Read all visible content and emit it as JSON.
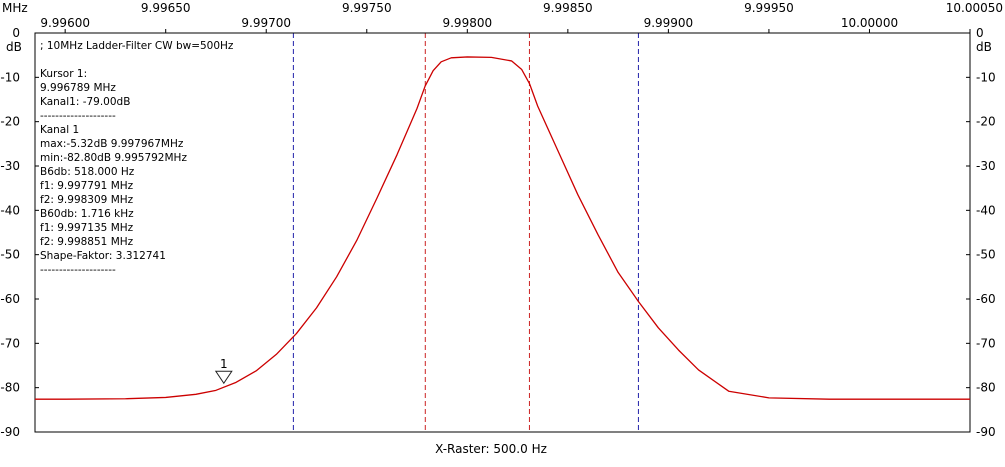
{
  "chart_data": {
    "type": "line",
    "title": "; 10MHz Ladder-Filter CW bw=500Hz",
    "x_unit": "MHz",
    "y_unit_left": "dB",
    "y_unit_right": "dB",
    "xlabel": "X-Raster: 500.0 Hz",
    "xlim": [
      9.99585,
      10.0005
    ],
    "ylim": [
      -90,
      0
    ],
    "x_ticks": [
      "9.99600",
      "9.99650",
      "9.99700",
      "9.99750",
      "9.99800",
      "9.99850",
      "9.99900",
      "9.99950",
      "10.00000",
      "10.00050"
    ],
    "y_ticks": [
      "0",
      "-10",
      "-20",
      "-30",
      "-40",
      "-50",
      "-60",
      "-70",
      "-80",
      "-90"
    ],
    "grid": true,
    "series": [
      {
        "color": "#cc0000",
        "x": [
          9.99585,
          9.996,
          9.9963,
          9.9965,
          9.99665,
          9.99675,
          9.99685,
          9.99695,
          9.99705,
          9.99715,
          9.99725,
          9.99735,
          9.99745,
          9.99755,
          9.99765,
          9.99775,
          9.99779,
          9.99783,
          9.99787,
          9.99792,
          9.998,
          9.99812,
          9.99822,
          9.99827,
          9.99831,
          9.99835,
          9.99845,
          9.99855,
          9.99865,
          9.99875,
          9.99885,
          9.99895,
          9.99905,
          9.99915,
          9.9993,
          9.9995,
          9.9998,
          10.0001,
          10.0005
        ],
        "values": [
          -82.6,
          -82.6,
          -82.5,
          -82.2,
          -81.5,
          -80.6,
          -78.8,
          -76.2,
          -72.5,
          -67.8,
          -62.0,
          -55.0,
          -46.8,
          -37.3,
          -27.5,
          -17.0,
          -12.0,
          -8.5,
          -6.5,
          -5.6,
          -5.4,
          -5.5,
          -6.3,
          -8.2,
          -11.5,
          -16.5,
          -26.5,
          -36.5,
          -45.5,
          -54.0,
          -60.5,
          -66.5,
          -71.5,
          -76.0,
          -80.8,
          -82.3,
          -82.6,
          -82.6,
          -82.6
        ]
      }
    ],
    "vlines": [
      {
        "x": 9.997135,
        "color": "#2222aa"
      },
      {
        "x": 9.997791,
        "color": "#cc2222"
      },
      {
        "x": 9.998309,
        "color": "#cc2222"
      },
      {
        "x": 9.998851,
        "color": "#2222aa"
      }
    ],
    "marker": {
      "x": 9.996789,
      "y": -79.0,
      "label": "1",
      "color": "#993333"
    },
    "info_lines": [
      "; 10MHz Ladder-Filter CW bw=500Hz",
      "",
      "Kursor 1:",
      "9.996789 MHz",
      "Kanal1: -79.00dB",
      "--------------------",
      "Kanal 1",
      "max:-5.32dB 9.997967MHz",
      "min:-82.80dB 9.995792MHz",
      "B6db: 518.000 Hz",
      "f1: 9.997791 MHz",
      "f2: 9.998309 MHz",
      "B60db: 1.716 kHz",
      "f1: 9.997135 MHz",
      "f2: 9.998851 MHz",
      "Shape-Faktor: 3.312741",
      "--------------------"
    ]
  }
}
